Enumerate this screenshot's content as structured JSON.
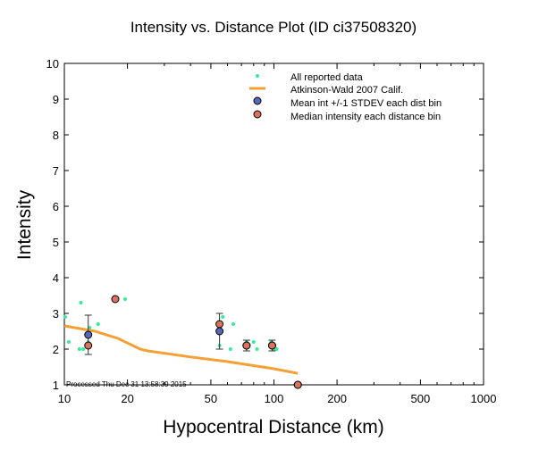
{
  "chart_data": {
    "type": "scatter",
    "title": "Intensity vs. Distance Plot (ID ci37508320)",
    "xlabel": "Hypocentral Distance (km)",
    "ylabel": "Intensity",
    "xscale": "log",
    "xlim": [
      10,
      1000
    ],
    "ylim": [
      1,
      10
    ],
    "xticks": [
      10,
      20,
      50,
      100,
      200,
      500,
      1000
    ],
    "xtick_labels": [
      "10",
      "20",
      "50",
      "100",
      "200",
      "500",
      "1000"
    ],
    "yticks": [
      1,
      2,
      3,
      4,
      5,
      6,
      7,
      8,
      9,
      10
    ],
    "ytick_labels": [
      "1",
      "2",
      "3",
      "4",
      "5",
      "6",
      "7",
      "8",
      "9",
      "10"
    ],
    "legend_position": "top-right",
    "series": [
      {
        "name": "All reported data",
        "kind": "points",
        "color": "#33ee99",
        "points": [
          {
            "x": 10.1,
            "y": 2.9
          },
          {
            "x": 10.5,
            "y": 2.2
          },
          {
            "x": 11.8,
            "y": 2.0
          },
          {
            "x": 12.0,
            "y": 3.3
          },
          {
            "x": 12.3,
            "y": 2.0
          },
          {
            "x": 13.0,
            "y": 2.2
          },
          {
            "x": 13.2,
            "y": 2.6
          },
          {
            "x": 14.5,
            "y": 2.7
          },
          {
            "x": 19.5,
            "y": 3.4
          },
          {
            "x": 55.0,
            "y": 2.1
          },
          {
            "x": 57.0,
            "y": 2.9
          },
          {
            "x": 62.0,
            "y": 2.0
          },
          {
            "x": 64.0,
            "y": 2.7
          },
          {
            "x": 74.0,
            "y": 2.2
          },
          {
            "x": 80.0,
            "y": 2.2
          },
          {
            "x": 83.0,
            "y": 2.0
          },
          {
            "x": 97.0,
            "y": 2.2
          },
          {
            "x": 100.0,
            "y": 2.0
          },
          {
            "x": 103.0,
            "y": 2.0
          },
          {
            "x": 130.0,
            "y": 1.0
          }
        ]
      },
      {
        "name": "Atkinson-Wald 2007 Calif.",
        "kind": "line",
        "color": "#f5a035",
        "points": [
          {
            "x": 10,
            "y": 2.65
          },
          {
            "x": 14,
            "y": 2.5
          },
          {
            "x": 18,
            "y": 2.3
          },
          {
            "x": 23,
            "y": 2.0
          },
          {
            "x": 25,
            "y": 1.95
          },
          {
            "x": 40,
            "y": 1.78
          },
          {
            "x": 60,
            "y": 1.65
          },
          {
            "x": 100,
            "y": 1.45
          },
          {
            "x": 130,
            "y": 1.32
          }
        ]
      },
      {
        "name": "Mean int +/-1 STDEV each dist bin",
        "kind": "errorbar",
        "color": "#5566bb",
        "points": [
          {
            "x": 13.0,
            "y": 2.4,
            "err": 0.55
          },
          {
            "x": 55.0,
            "y": 2.5,
            "err": 0.5
          },
          {
            "x": 74.0,
            "y": 2.1,
            "err": 0.15
          },
          {
            "x": 98.0,
            "y": 2.1,
            "err": 0.15
          },
          {
            "x": 130.0,
            "y": 1.0,
            "err": 0.0
          }
        ]
      },
      {
        "name": "Median intensity each distance bin",
        "kind": "points",
        "color": "#d9735d",
        "points": [
          {
            "x": 13.0,
            "y": 2.1
          },
          {
            "x": 17.5,
            "y": 3.4
          },
          {
            "x": 55.0,
            "y": 2.7
          },
          {
            "x": 74.0,
            "y": 2.1
          },
          {
            "x": 98.0,
            "y": 2.1
          },
          {
            "x": 130.0,
            "y": 1.0
          }
        ]
      }
    ],
    "footnote": "Processed Thu Dec 31 13:58:39 2015"
  }
}
